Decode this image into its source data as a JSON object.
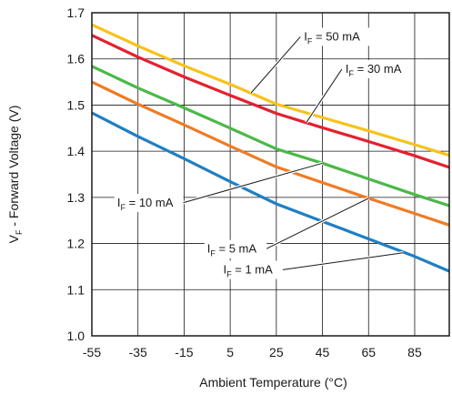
{
  "chart_data": {
    "type": "line",
    "xlabel": "Ambient Temperature (°C)",
    "ylabel": {
      "main": "V",
      "sub": "F",
      "rest": " - Forward Voltage (V)"
    },
    "xlim": [
      -55,
      100
    ],
    "ylim": [
      1.0,
      1.7
    ],
    "xticks": [
      -55,
      -35,
      -15,
      5,
      25,
      45,
      65,
      85
    ],
    "xtick_labels": [
      "-55",
      "-35",
      "-15",
      "5",
      "25",
      "45",
      "65",
      "85"
    ],
    "yticks": [
      1.0,
      1.1,
      1.2,
      1.3,
      1.4,
      1.5,
      1.6,
      1.7
    ],
    "ytick_labels": [
      "1.0",
      "1.1",
      "1.2",
      "1.3",
      "1.4",
      "1.5",
      "1.6",
      "1.7"
    ],
    "grid": true,
    "series": [
      {
        "name": "IF = 1 mA",
        "label_main": "I",
        "label_sub": "F",
        "label_rest": " = 1 mA",
        "color": "#1f7fc4",
        "x": [
          -55,
          -35,
          -15,
          5,
          25,
          45,
          65,
          85,
          100
        ],
        "y": [
          1.483,
          1.432,
          1.384,
          1.334,
          1.286,
          1.248,
          1.21,
          1.172,
          1.14
        ]
      },
      {
        "name": "IF = 5 mA",
        "label_main": "I",
        "label_sub": "F",
        "label_rest": " = 5 mA",
        "color": "#f07b24",
        "x": [
          -55,
          -35,
          -15,
          5,
          25,
          45,
          65,
          85,
          100
        ],
        "y": [
          1.55,
          1.502,
          1.457,
          1.411,
          1.366,
          1.332,
          1.298,
          1.265,
          1.24
        ]
      },
      {
        "name": "IF = 10 mA",
        "label_main": "I",
        "label_sub": "F",
        "label_rest": " = 10 mA",
        "color": "#4cb848",
        "x": [
          -55,
          -35,
          -15,
          5,
          25,
          45,
          65,
          85,
          100
        ],
        "y": [
          1.584,
          1.537,
          1.494,
          1.45,
          1.405,
          1.374,
          1.34,
          1.306,
          1.282
        ]
      },
      {
        "name": "IF = 30 mA",
        "label_main": "I",
        "label_sub": "F",
        "label_rest": " = 30 mA",
        "color": "#e5202e",
        "x": [
          -55,
          -35,
          -15,
          5,
          25,
          45,
          65,
          85,
          100
        ],
        "y": [
          1.651,
          1.604,
          1.561,
          1.521,
          1.482,
          1.451,
          1.421,
          1.39,
          1.365
        ]
      },
      {
        "name": "IF = 50 mA",
        "label_main": "I",
        "label_sub": "F",
        "label_rest": " = 50 mA",
        "color": "#f7c21a",
        "x": [
          -55,
          -35,
          -15,
          5,
          25,
          45,
          65,
          85,
          100
        ],
        "y": [
          1.674,
          1.628,
          1.585,
          1.545,
          1.502,
          1.473,
          1.444,
          1.414,
          1.391
        ]
      }
    ],
    "annotations": [
      {
        "series": 4,
        "text_x": 37,
        "text_y": 1.64,
        "point_x": 14,
        "point_y": 1.526
      },
      {
        "series": 3,
        "text_x": 55,
        "text_y": 1.57,
        "point_x": 38,
        "point_y": 1.462
      },
      {
        "series": 2,
        "text_x": -44,
        "text_y": 1.28,
        "point_x": 45,
        "point_y": 1.374
      },
      {
        "series": 1,
        "text_x": -5,
        "text_y": 1.18,
        "point_x": 65,
        "point_y": 1.298
      },
      {
        "series": 0,
        "text_x": 2,
        "text_y": 1.135,
        "point_x": 80,
        "point_y": 1.18
      }
    ]
  }
}
